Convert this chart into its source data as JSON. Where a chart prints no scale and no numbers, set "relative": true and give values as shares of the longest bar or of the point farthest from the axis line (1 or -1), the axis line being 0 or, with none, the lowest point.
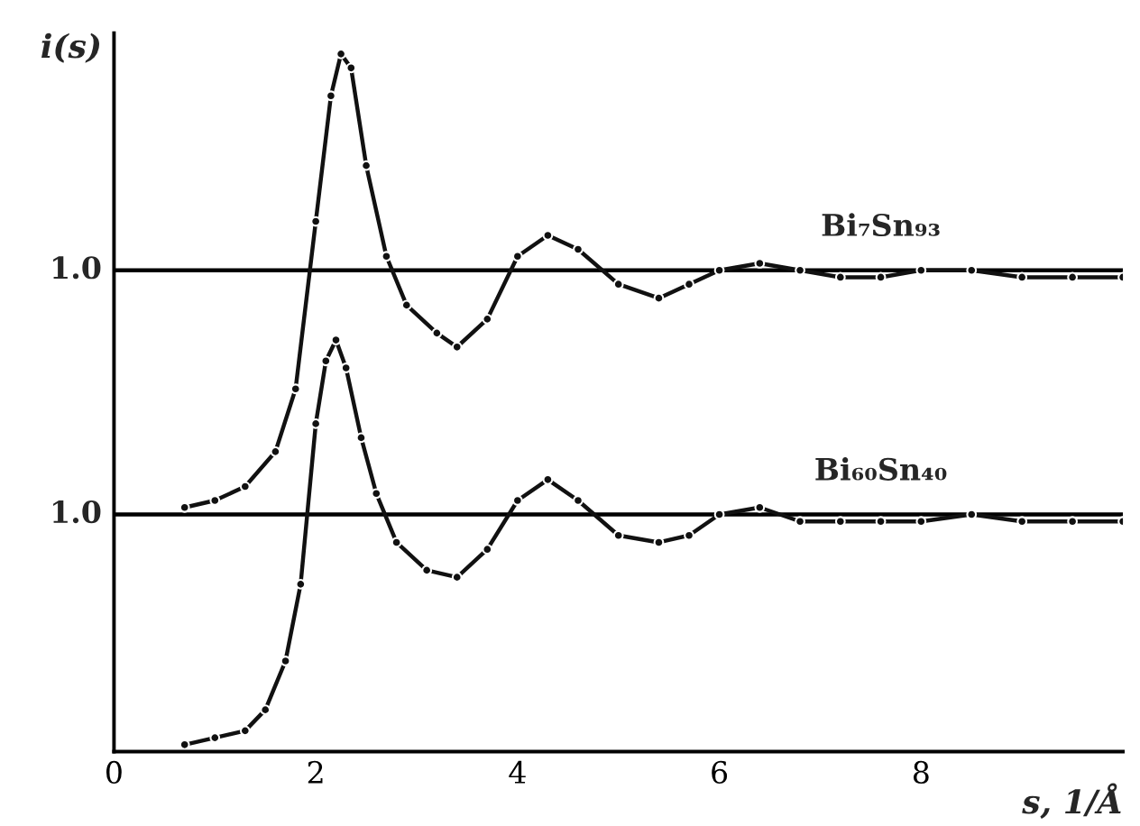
{
  "chart_data": {
    "type": "line",
    "xlabel": "s, 1/Å",
    "ylabel": "i(s)",
    "xlim": [
      0,
      10
    ],
    "xticks": [
      0,
      2,
      4,
      6,
      8
    ],
    "relative": true,
    "grid": false,
    "legend": false,
    "marker": "circle",
    "line_style": "solid",
    "ref_lines": [
      {
        "axis": "y",
        "value": 0.34,
        "color": "#000000"
      },
      {
        "axis": "y",
        "value": 0.69,
        "color": "#000000"
      }
    ],
    "annotations": [
      "1.0",
      "1.0"
    ],
    "series": [
      {
        "name": "Bi₇Sn₉₃",
        "color": "#111111",
        "x": [
          0.7,
          1.0,
          1.3,
          1.6,
          1.8,
          2.0,
          2.15,
          2.25,
          2.35,
          2.5,
          2.7,
          2.9,
          3.2,
          3.4,
          3.7,
          4.0,
          4.3,
          4.6,
          5.0,
          5.4,
          5.7,
          6.0,
          6.4,
          6.8,
          7.2,
          7.6,
          8.0,
          8.5,
          9.0,
          9.5,
          10.0
        ],
        "values": [
          0.35,
          0.36,
          0.38,
          0.43,
          0.52,
          0.76,
          0.94,
          1.0,
          0.98,
          0.84,
          0.71,
          0.64,
          0.6,
          0.58,
          0.62,
          0.71,
          0.74,
          0.72,
          0.67,
          0.65,
          0.67,
          0.69,
          0.7,
          0.69,
          0.68,
          0.68,
          0.69,
          0.69,
          0.68,
          0.68,
          0.68
        ]
      },
      {
        "name": "Bi₆₀Sn₄₀",
        "color": "#111111",
        "x": [
          0.7,
          1.0,
          1.3,
          1.5,
          1.7,
          1.85,
          2.0,
          2.1,
          2.2,
          2.3,
          2.45,
          2.6,
          2.8,
          3.1,
          3.4,
          3.7,
          4.0,
          4.3,
          4.6,
          5.0,
          5.4,
          5.7,
          6.0,
          6.4,
          6.8,
          7.2,
          7.6,
          8.0,
          8.5,
          9.0,
          9.5,
          10.0
        ],
        "values": [
          0.01,
          0.02,
          0.03,
          0.06,
          0.13,
          0.24,
          0.47,
          0.56,
          0.59,
          0.55,
          0.45,
          0.37,
          0.3,
          0.26,
          0.25,
          0.29,
          0.36,
          0.39,
          0.36,
          0.31,
          0.3,
          0.31,
          0.34,
          0.35,
          0.33,
          0.33,
          0.33,
          0.33,
          0.34,
          0.33,
          0.33,
          0.33
        ]
      }
    ]
  }
}
